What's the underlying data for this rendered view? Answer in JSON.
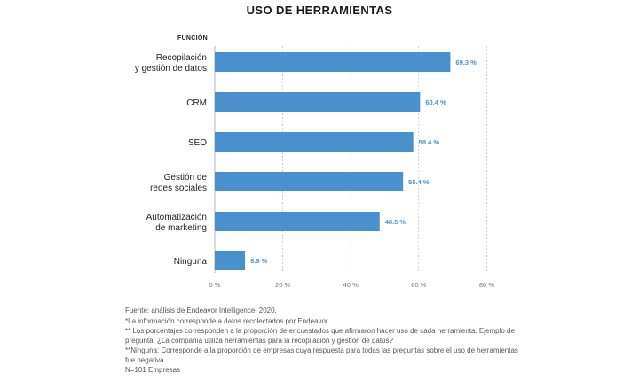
{
  "header": {
    "title": "USO DE HERRAMIENTAS",
    "column_header": "FUNCIÓN"
  },
  "colors": {
    "bar": "#4a90cc",
    "value_label": "#4a90cc",
    "axis": "#b0b0b0"
  },
  "chart_data": {
    "type": "bar",
    "orientation": "horizontal",
    "title": "USO DE HERRAMIENTAS",
    "categories": [
      [
        "Recopilación",
        "y gestión de datos"
      ],
      [
        "CRM"
      ],
      [
        "SEO"
      ],
      [
        "Gestión de",
        "redes sociales"
      ],
      [
        "Automatización",
        "de marketing"
      ],
      [
        "Ninguna"
      ]
    ],
    "values": [
      69.3,
      60.4,
      58.4,
      55.4,
      48.5,
      8.9
    ],
    "value_labels": [
      "69.3 %",
      "60.4 %",
      "58.4 %",
      "55.4 %",
      "48.5 %",
      "8.9 %"
    ],
    "xlim": [
      0,
      80
    ],
    "xticks": [
      0,
      20,
      40,
      60,
      80
    ],
    "xtick_labels": [
      "0 %",
      "20 %",
      "40 %",
      "60 %",
      "80 %"
    ],
    "grid": true
  },
  "footnotes": {
    "source": "Fuente: análisis de Endeavor Intelligence, 2020.",
    "note1": "*La información corresponde a datos recolectados por Endeavor.",
    "note2": "** Los porcentajes corresponden a la proporción de encuestados que afirmaron hacer uso de cada herramienta. Ejemplo de pregunta: ¿La compañía utiliza herramientas para la recopilación y gestión de datos?",
    "note3": "**Ninguna: Corresponde a la proporción de empresas cuya respuesta para todas las preguntas sobre el uso de herramientas fue negativa.",
    "sample": "N=101 Empresas"
  }
}
